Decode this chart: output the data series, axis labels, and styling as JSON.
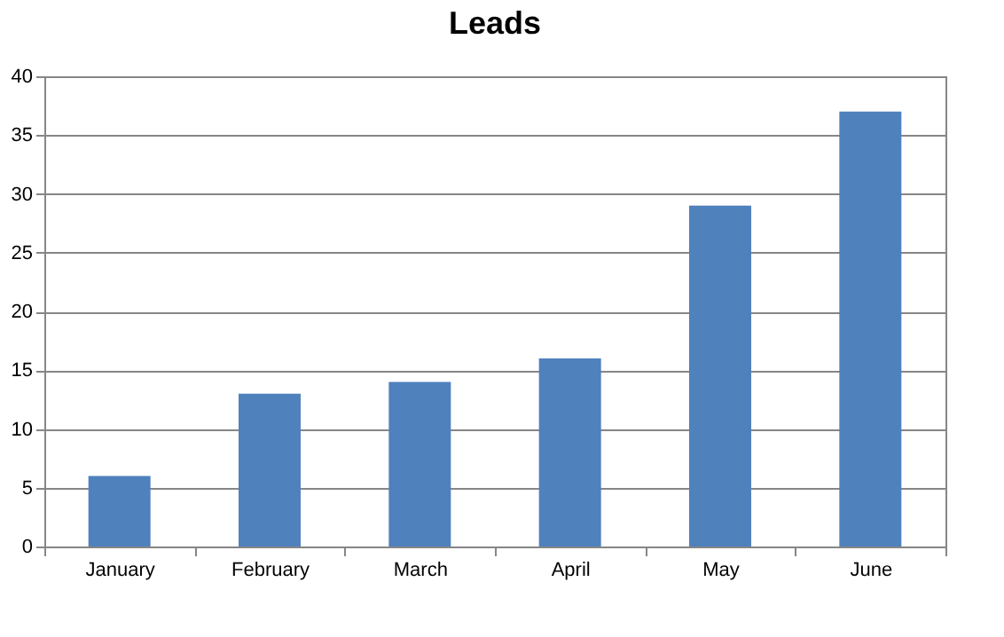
{
  "chart_data": {
    "type": "bar",
    "title": "Leads",
    "categories": [
      "January",
      "February",
      "March",
      "April",
      "May",
      "June"
    ],
    "values": [
      6,
      13,
      14,
      16,
      29,
      37
    ],
    "color": "#4f81bd",
    "ylim": [
      0,
      40
    ],
    "yticks": [
      0,
      5,
      10,
      15,
      20,
      25,
      30,
      35,
      40
    ],
    "grid": "y"
  }
}
